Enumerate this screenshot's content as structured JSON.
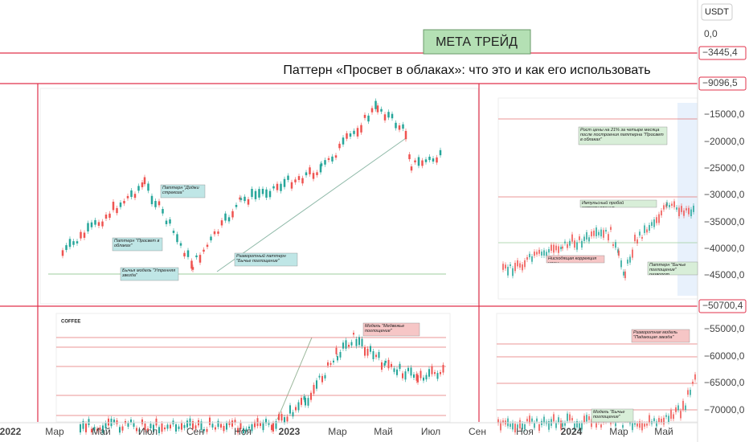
{
  "header": {
    "banner": "МЕТА ТРЕЙД",
    "title": "Паттерн «Просвет в облаках»: что это и как его использовать"
  },
  "price_axis": {
    "currency": "USDT",
    "ticks": [
      "0,0",
      "−15000,0",
      "−20000,0",
      "−25000,0",
      "−30000,0",
      "−35000,0",
      "−40000,0",
      "−45000,0",
      "−55000,0",
      "−60000,0",
      "−65000,0",
      "−70000,0"
    ]
  },
  "price_lines": [
    "−3445,4",
    "−9096,5",
    "−50700,4"
  ],
  "time_axis": [
    "2022",
    "Мар",
    "Май",
    "Июл",
    "Сен",
    "Ноя",
    "2023",
    "Мар",
    "Май",
    "Июл",
    "Сен",
    "Ноя",
    "2024",
    "Мар",
    "Май"
  ],
  "panels": {
    "main": {
      "annotations": [
        "Паттерн \"Доджи стрекоза\"",
        "Паттерн \"Просвет в облаках\"",
        "Бычья модель \"Утренняя звезда\"",
        "Разворотный паттерн \"Бычье поглощение\""
      ]
    },
    "top_right": {
      "annotations": [
        "Рост цены на 21% за четыре месяца после построения паттерна \"Просвет в облаках\"",
        "Импульсный пробой сопротивления",
        "Нисходящая коррекция цены",
        "Паттерн \"Бычье поглощение\" разворот"
      ]
    },
    "bottom_left": {
      "symbol": "COFFEE",
      "annotations": [
        "Модель \"Медвежье поглощение\""
      ]
    },
    "bottom_right": {
      "annotations": [
        "Разворотная модель \"Падающая звезда\"",
        "Модель \"Бычье поглощение\""
      ]
    }
  }
}
